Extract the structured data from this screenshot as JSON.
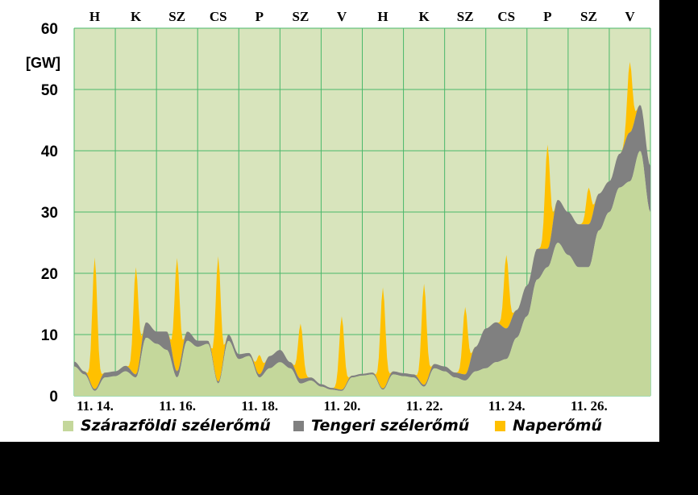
{
  "chart_data": {
    "type": "area",
    "title": "",
    "ylabel": "[GW]",
    "xlabel": "",
    "ylim": [
      0,
      60
    ],
    "yticks": [
      0,
      10,
      20,
      30,
      40,
      50,
      60
    ],
    "xlim": [
      14,
      28
    ],
    "date_labels": [
      {
        "x": 14,
        "label": "11. 14."
      },
      {
        "x": 16,
        "label": "11. 16."
      },
      {
        "x": 18,
        "label": "11. 18."
      },
      {
        "x": 20,
        "label": "11. 20."
      },
      {
        "x": 22,
        "label": "11. 22."
      },
      {
        "x": 24,
        "label": "11. 24."
      },
      {
        "x": 26,
        "label": "11. 26."
      }
    ],
    "day_labels": [
      "H",
      "K",
      "SZ",
      "CS",
      "P",
      "SZ",
      "V",
      "H",
      "K",
      "SZ",
      "CS",
      "P",
      "SZ",
      "V"
    ],
    "grid": true,
    "legend_position": "bottom",
    "stacked": true,
    "series": [
      {
        "name": "Szárazföldi szélerőmű",
        "color": "#c4d79b",
        "points": [
          [
            14.0,
            4.8
          ],
          [
            14.25,
            3.5
          ],
          [
            14.5,
            0.8
          ],
          [
            14.75,
            3.0
          ],
          [
            15.0,
            3.2
          ],
          [
            15.25,
            4.0
          ],
          [
            15.5,
            3.0
          ],
          [
            15.75,
            9.5
          ],
          [
            16.0,
            8.5
          ],
          [
            16.25,
            7.5
          ],
          [
            16.5,
            3.0
          ],
          [
            16.75,
            9.0
          ],
          [
            17.0,
            8.0
          ],
          [
            17.25,
            8.5
          ],
          [
            17.5,
            2.0
          ],
          [
            17.75,
            9.0
          ],
          [
            18.0,
            6.0
          ],
          [
            18.25,
            6.5
          ],
          [
            18.5,
            3.0
          ],
          [
            18.75,
            4.5
          ],
          [
            19.0,
            5.5
          ],
          [
            19.25,
            4.5
          ],
          [
            19.5,
            2.0
          ],
          [
            19.75,
            2.5
          ],
          [
            20.0,
            1.5
          ],
          [
            20.25,
            1.0
          ],
          [
            20.5,
            0.8
          ],
          [
            20.75,
            3.0
          ],
          [
            21.0,
            3.3
          ],
          [
            21.25,
            3.5
          ],
          [
            21.5,
            1.0
          ],
          [
            21.75,
            3.5
          ],
          [
            22.0,
            3.2
          ],
          [
            22.25,
            3.0
          ],
          [
            22.5,
            1.5
          ],
          [
            22.75,
            4.5
          ],
          [
            23.0,
            4.0
          ],
          [
            23.25,
            3.0
          ],
          [
            23.5,
            2.5
          ],
          [
            23.75,
            4.0
          ],
          [
            24.0,
            4.5
          ],
          [
            24.25,
            5.5
          ],
          [
            24.5,
            6.0
          ],
          [
            24.75,
            9.5
          ],
          [
            25.0,
            13.0
          ],
          [
            25.25,
            19.0
          ],
          [
            25.5,
            21.0
          ],
          [
            25.75,
            25.0
          ],
          [
            26.0,
            23.0
          ],
          [
            26.25,
            21.0
          ],
          [
            26.5,
            21.0
          ],
          [
            26.75,
            27.0
          ],
          [
            27.0,
            30.0
          ],
          [
            27.25,
            34.0
          ],
          [
            27.5,
            35.0
          ],
          [
            27.75,
            40.0
          ],
          [
            28.0,
            30.0
          ]
        ]
      },
      {
        "name": "Tengeri szélerőmű",
        "color": "#808080",
        "points": [
          [
            14.0,
            0.8
          ],
          [
            14.25,
            0.5
          ],
          [
            14.5,
            0.3
          ],
          [
            14.75,
            0.8
          ],
          [
            15.0,
            0.8
          ],
          [
            15.25,
            0.9
          ],
          [
            15.5,
            0.5
          ],
          [
            15.75,
            2.5
          ],
          [
            16.0,
            2.0
          ],
          [
            16.25,
            3.0
          ],
          [
            16.5,
            1.0
          ],
          [
            16.75,
            1.5
          ],
          [
            17.0,
            1.0
          ],
          [
            17.25,
            0.5
          ],
          [
            17.5,
            0.3
          ],
          [
            17.75,
            1.0
          ],
          [
            18.0,
            0.8
          ],
          [
            18.25,
            0.5
          ],
          [
            18.5,
            0.5
          ],
          [
            18.75,
            2.0
          ],
          [
            19.0,
            2.0
          ],
          [
            19.25,
            1.0
          ],
          [
            19.5,
            0.8
          ],
          [
            19.75,
            0.5
          ],
          [
            20.0,
            0.4
          ],
          [
            20.25,
            0.3
          ],
          [
            20.5,
            0.2
          ],
          [
            20.75,
            0.3
          ],
          [
            21.0,
            0.3
          ],
          [
            21.25,
            0.3
          ],
          [
            21.5,
            0.2
          ],
          [
            21.75,
            0.5
          ],
          [
            22.0,
            0.5
          ],
          [
            22.25,
            0.5
          ],
          [
            22.5,
            0.3
          ],
          [
            22.75,
            0.7
          ],
          [
            23.0,
            0.8
          ],
          [
            23.25,
            0.8
          ],
          [
            23.5,
            1.0
          ],
          [
            23.75,
            4.0
          ],
          [
            24.0,
            6.5
          ],
          [
            24.25,
            6.5
          ],
          [
            24.5,
            5.0
          ],
          [
            24.75,
            4.5
          ],
          [
            25.0,
            5.0
          ],
          [
            25.25,
            5.0
          ],
          [
            25.5,
            3.0
          ],
          [
            25.75,
            7.0
          ],
          [
            26.0,
            7.0
          ],
          [
            26.25,
            7.0
          ],
          [
            26.5,
            7.0
          ],
          [
            26.75,
            6.0
          ],
          [
            27.0,
            5.0
          ],
          [
            27.25,
            5.5
          ],
          [
            27.5,
            8.0
          ],
          [
            27.75,
            7.5
          ],
          [
            28.0,
            7.5
          ]
        ]
      },
      {
        "name": "Naperőmű",
        "color": "#ffc000",
        "peaks": [
          {
            "x": 14.5,
            "value": 21.5
          },
          {
            "x": 15.5,
            "value": 17.5
          },
          {
            "x": 16.5,
            "value": 18.5
          },
          {
            "x": 17.5,
            "value": 20.5
          },
          {
            "x": 18.5,
            "value": 3.2
          },
          {
            "x": 19.5,
            "value": 9.0
          },
          {
            "x": 20.5,
            "value": 12.0
          },
          {
            "x": 21.5,
            "value": 16.5
          },
          {
            "x": 22.5,
            "value": 16.5
          },
          {
            "x": 23.5,
            "value": 11.0
          },
          {
            "x": 24.5,
            "value": 12.0
          },
          {
            "x": 25.5,
            "value": 17.0
          },
          {
            "x": 26.5,
            "value": 6.0
          },
          {
            "x": 27.5,
            "value": 11.5
          }
        ]
      }
    ]
  }
}
